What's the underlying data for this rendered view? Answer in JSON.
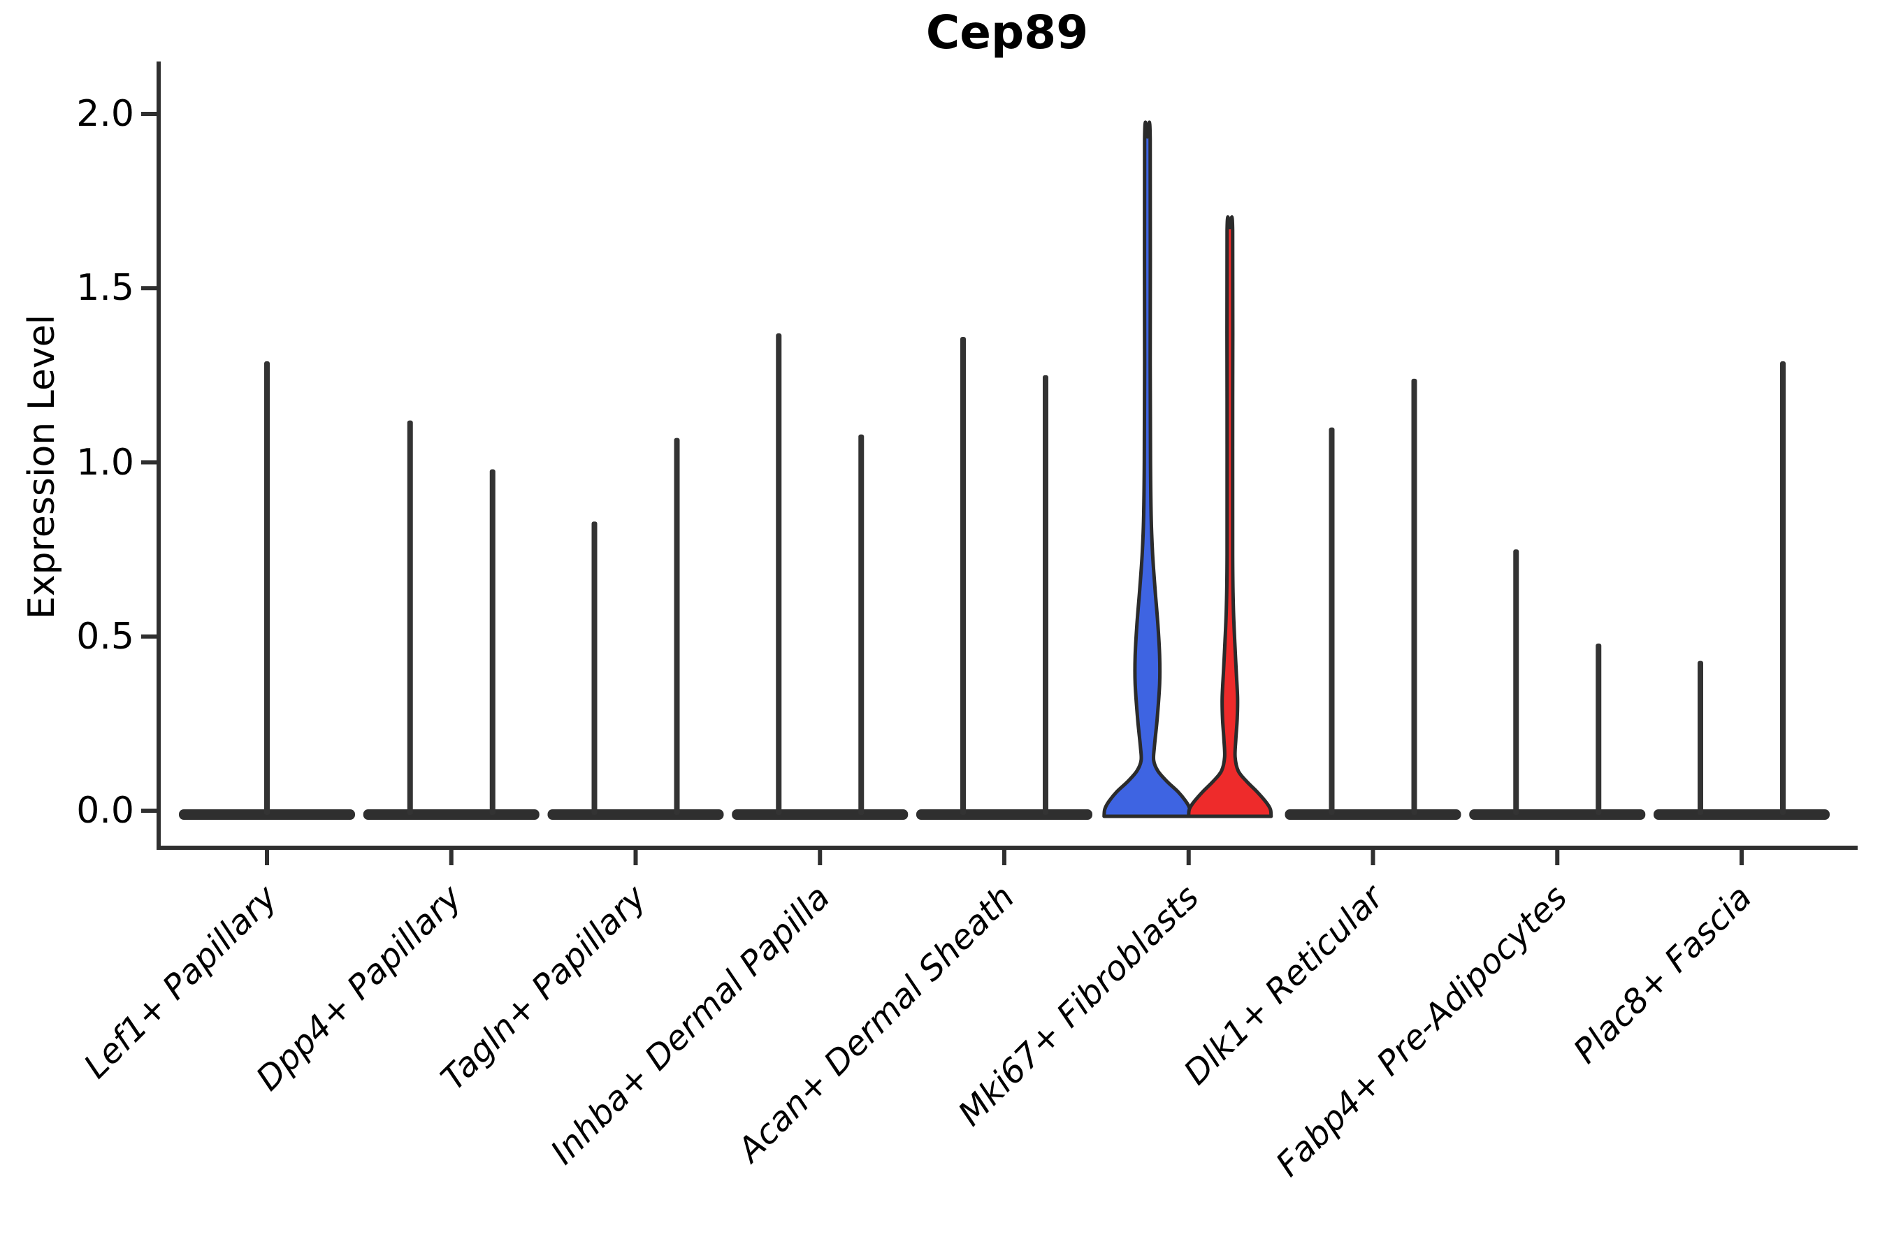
{
  "chart_data": {
    "type": "violin",
    "title": "Cep89",
    "xlabel": "",
    "ylabel": "Expression Level",
    "ylim": [
      0,
      2.0
    ],
    "yticks": [
      "0.0",
      "0.5",
      "1.0",
      "1.5",
      "2.0"
    ],
    "ytick_values": [
      0,
      0.5,
      1.0,
      1.5,
      2.0
    ],
    "grid": "off",
    "legend": "none",
    "split_colors": [
      "#3E64E2",
      "#EE2B2B"
    ],
    "default_violin_color": "#2F2F2F",
    "description": "Split violin plot; expression is near zero in all clusters (flat violins with thin density tails). Only Mki67+ Fibroblasts shows visibly filled blue (left) and red (right) violins.",
    "categories": [
      {
        "label": "Lef1+ Papillary",
        "violins": [
          {
            "position": "center",
            "max": 1.29
          }
        ]
      },
      {
        "label": "Dpp4+ Papillary",
        "violins": [
          {
            "position": "left",
            "max": 1.12
          },
          {
            "position": "right",
            "max": 0.98
          }
        ]
      },
      {
        "label": "Tagln+ Papillary",
        "violins": [
          {
            "position": "left",
            "max": 0.83
          },
          {
            "position": "right",
            "max": 1.07
          }
        ]
      },
      {
        "label": "Inhba+ Dermal Papilla",
        "violins": [
          {
            "position": "left",
            "max": 1.37
          },
          {
            "position": "right",
            "max": 1.08
          }
        ]
      },
      {
        "label": "Acan+ Dermal Sheath",
        "violins": [
          {
            "position": "left",
            "max": 1.36
          },
          {
            "position": "right",
            "max": 1.25
          }
        ]
      },
      {
        "label": "Mki67+ Fibroblasts",
        "violins": [
          {
            "position": "left",
            "max": 1.94,
            "color": "#3E64E2",
            "profile": [
              [
                0,
                62
              ],
              [
                0.02,
                61
              ],
              [
                0.04,
                56
              ],
              [
                0.07,
                44
              ],
              [
                0.1,
                28
              ],
              [
                0.13,
                15
              ],
              [
                0.16,
                9
              ],
              [
                0.2,
                10
              ],
              [
                0.28,
                14
              ],
              [
                0.38,
                17.5
              ],
              [
                0.46,
                17.5
              ],
              [
                0.55,
                15
              ],
              [
                0.65,
                11
              ],
              [
                0.75,
                7.5
              ],
              [
                0.85,
                5.5
              ],
              [
                1.0,
                4.5
              ],
              [
                1.3,
                4
              ],
              [
                1.94,
                4
              ]
            ]
          },
          {
            "position": "right",
            "max": 1.68,
            "color": "#EE2B2B",
            "profile": [
              [
                0,
                59
              ],
              [
                0.02,
                58
              ],
              [
                0.04,
                52
              ],
              [
                0.07,
                39
              ],
              [
                0.1,
                24
              ],
              [
                0.13,
                12
              ],
              [
                0.17,
                7.5
              ],
              [
                0.22,
                8.5
              ],
              [
                0.28,
                10.5
              ],
              [
                0.34,
                11
              ],
              [
                0.42,
                9
              ],
              [
                0.5,
                7
              ],
              [
                0.6,
                5
              ],
              [
                0.75,
                4
              ],
              [
                1.2,
                4
              ],
              [
                1.68,
                4
              ]
            ]
          }
        ]
      },
      {
        "label": "Dlk1+ Reticular",
        "violins": [
          {
            "position": "left",
            "max": 1.1
          },
          {
            "position": "right",
            "max": 1.24
          }
        ]
      },
      {
        "label": "Fabp4+ Pre-Adipocytes",
        "violins": [
          {
            "position": "left",
            "max": 0.75
          },
          {
            "position": "right",
            "max": 0.48
          }
        ]
      },
      {
        "label": "Plac8+ Fascia",
        "violins": [
          {
            "position": "left",
            "max": 0.43
          },
          {
            "position": "right",
            "max": 1.29
          }
        ]
      }
    ]
  }
}
